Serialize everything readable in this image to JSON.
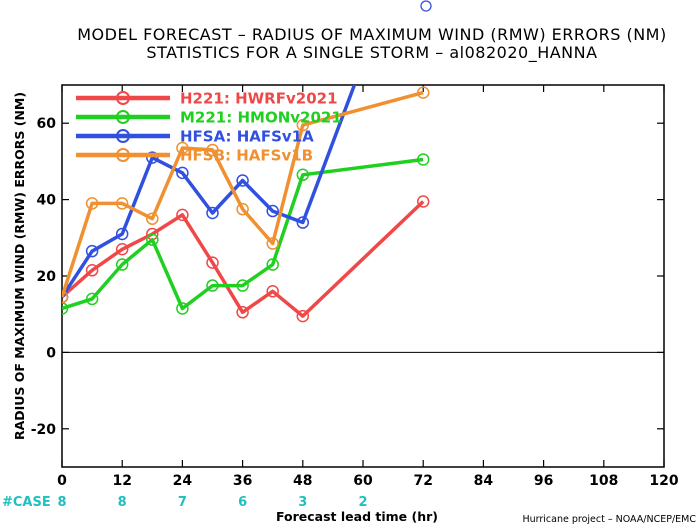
{
  "chart_data": {
    "type": "line",
    "title": "MODEL FORECAST – RADIUS OF MAXIMUM WIND (RMW) ERRORS (NM)",
    "subtitle": "STATISTICS FOR A SINGLE STORM – al082020_HANNA",
    "xlabel": "Forecast lead time (hr)",
    "ylabel": "RADIUS OF MAXIMUM WIND (RMW) ERRORS (NM)",
    "xlim": [
      0,
      120
    ],
    "ylim": [
      -30,
      70
    ],
    "x_ticks": [
      0,
      12,
      24,
      36,
      48,
      60,
      72,
      84,
      96,
      108,
      120
    ],
    "y_ticks": [
      -20,
      0,
      20,
      40,
      60
    ],
    "zero_line": true,
    "legend_position": "top-left",
    "series": [
      {
        "name": "H221: HWRFv2021",
        "color": "#f04848",
        "x": [
          0,
          6,
          12,
          18,
          24,
          30,
          36,
          42,
          48,
          72
        ],
        "y": [
          14.5,
          21.5,
          27,
          31,
          36,
          23.5,
          10.5,
          16,
          9.5,
          39.5
        ]
      },
      {
        "name": "M221: HMONv2021",
        "color": "#20d020",
        "x": [
          0,
          6,
          12,
          18,
          24,
          30,
          36,
          42,
          48,
          72
        ],
        "y": [
          11.5,
          14,
          23,
          29.5,
          11.5,
          17.5,
          17.5,
          23,
          46.5,
          50.5
        ]
      },
      {
        "name": "HFSA: HAFSv1A",
        "color": "#3050e0",
        "x": [
          0,
          6,
          12,
          18,
          24,
          30,
          36,
          42,
          48,
          72
        ],
        "y": [
          14.5,
          26.5,
          31,
          51,
          47,
          36.5,
          45,
          37,
          34,
          118
        ]
      },
      {
        "name": "HFSB: HAFSv1B",
        "color": "#f09030",
        "x": [
          0,
          6,
          12,
          18,
          24,
          30,
          36,
          42,
          48,
          72
        ],
        "y": [
          14.5,
          39,
          39,
          35,
          53.5,
          53,
          37.5,
          28.5,
          59.5,
          68
        ]
      }
    ],
    "cases": {
      "label": "#CASE",
      "x": [
        0,
        12,
        24,
        36,
        48,
        60
      ],
      "values": [
        "8",
        "8",
        "7",
        "6",
        "3",
        "2"
      ]
    }
  },
  "credit": "Hurricane project – NOAA/NCEP/EMC"
}
